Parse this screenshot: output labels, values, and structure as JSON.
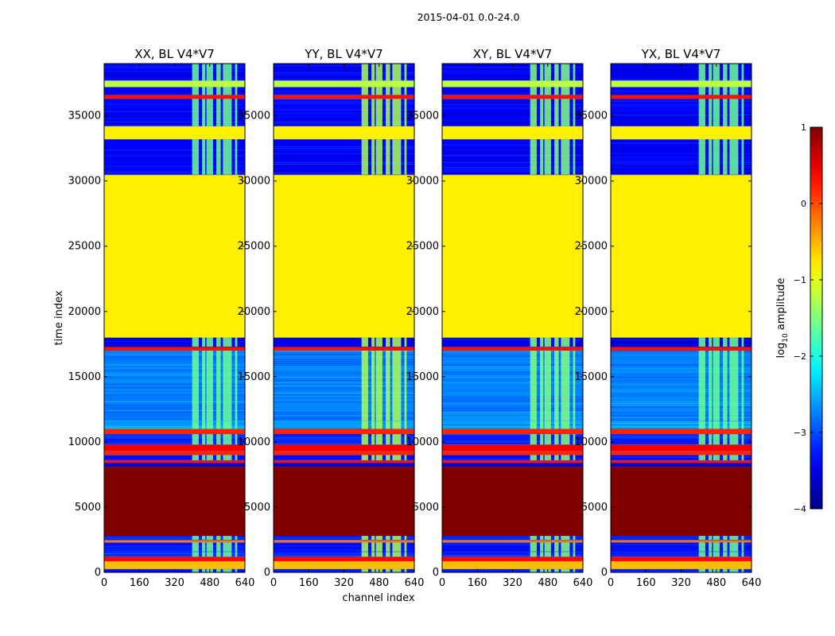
{
  "figure": {
    "suptitle": "2015-04-01 0.0-24.0",
    "xlabel": "channel index",
    "ylabel": "time index"
  },
  "chart_data": {
    "type": "heatmap",
    "x": {
      "label": "channel index",
      "lim": [
        0,
        640
      ],
      "ticks": [
        0,
        160,
        320,
        480,
        640
      ]
    },
    "y": {
      "label": "time index",
      "lim": [
        0,
        39000
      ],
      "ticks": [
        0,
        5000,
        10000,
        15000,
        20000,
        25000,
        30000,
        35000
      ]
    },
    "colorbar": {
      "label_pre": "log",
      "label_sub": "10",
      "label_post": " amplitude",
      "vmin": -4,
      "vmax": 1,
      "ticks": [
        1,
        0,
        -1,
        -2,
        -3,
        -4
      ],
      "colormap": "jet"
    },
    "rfi_channel_bands": [
      [
        400,
        430
      ],
      [
        445,
        460
      ],
      [
        465,
        495
      ],
      [
        510,
        530
      ],
      [
        540,
        580
      ],
      [
        595,
        605
      ]
    ],
    "time_bands": [
      {
        "from": 0,
        "to": 260,
        "level": -3.3,
        "noisy": true
      },
      {
        "from": 260,
        "to": 850,
        "level": -0.55
      },
      {
        "from": 850,
        "to": 1200,
        "level": 0.35
      },
      {
        "from": 1200,
        "to": 1600,
        "level": -3.2,
        "noisy": true
      },
      {
        "from": 1600,
        "to": 2300,
        "level": -3.3,
        "noisy": true
      },
      {
        "from": 2300,
        "to": 2500,
        "level": -0.2
      },
      {
        "from": 2500,
        "to": 2800,
        "level": -3.2,
        "noisy": true
      },
      {
        "from": 2800,
        "to": 8100,
        "level": 1
      },
      {
        "from": 8100,
        "to": 8400,
        "level": -3.6
      },
      {
        "from": 8400,
        "to": 8600,
        "level": 0.3
      },
      {
        "from": 8600,
        "to": 9000,
        "level": -3.3,
        "noisy": true
      },
      {
        "from": 9000,
        "to": 9300,
        "level": 0.2
      },
      {
        "from": 9300,
        "to": 9800,
        "level": 0.45
      },
      {
        "from": 9800,
        "to": 10600,
        "level": -3.2,
        "noisy": true
      },
      {
        "from": 10600,
        "to": 11000,
        "level": 0.2
      },
      {
        "from": 11000,
        "to": 11600,
        "level": -2.6,
        "noisy": true
      },
      {
        "from": 11600,
        "to": 17000,
        "level": -2.75,
        "noisy": true
      },
      {
        "from": 17000,
        "to": 17300,
        "level": 0.3
      },
      {
        "from": 17300,
        "to": 18000,
        "level": -3.5,
        "noisy": true
      },
      {
        "from": 18000,
        "to": 30500,
        "level": -0.8
      },
      {
        "from": 30500,
        "to": 33200,
        "level": -3.4,
        "noisy": true
      },
      {
        "from": 33200,
        "to": 34200,
        "level": -0.8
      },
      {
        "from": 34200,
        "to": 36300,
        "level": -3.4,
        "noisy": true
      },
      {
        "from": 36300,
        "to": 36600,
        "level": 0.3
      },
      {
        "from": 36600,
        "to": 37200,
        "level": -3.4,
        "noisy": true
      },
      {
        "from": 37200,
        "to": 37700,
        "level": -1.2
      },
      {
        "from": 37700,
        "to": 39000,
        "level": -3.4,
        "noisy": true
      }
    ],
    "panels": [
      {
        "id": "xx",
        "title": "XX, BL V4*V7",
        "rfi_level": -1.6
      },
      {
        "id": "yy",
        "title": "YY, BL V4*V7",
        "rfi_level": -1.3
      },
      {
        "id": "xy",
        "title": "XY, BL V4*V7",
        "rfi_level": -1.5
      },
      {
        "id": "yx",
        "title": "YX, BL V4*V7",
        "rfi_level": -1.6
      }
    ]
  }
}
